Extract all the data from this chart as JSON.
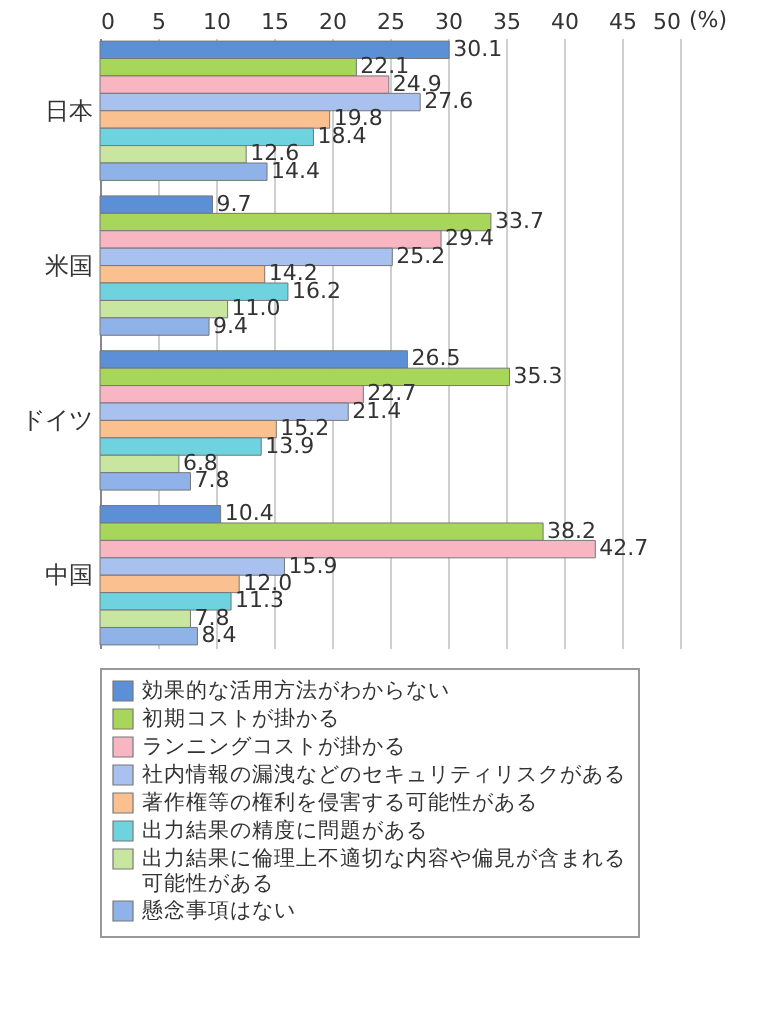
{
  "chart_data": {
    "type": "bar",
    "orientation": "horizontal",
    "xlabel": "(%)",
    "categories": [
      "日本",
      "米国",
      "ドイツ",
      "中国"
    ],
    "series": [
      {
        "name": "効果的な活用方法がわからない",
        "color": "#5b8fd6",
        "values": [
          30.1,
          9.7,
          26.5,
          10.4
        ],
        "value_labels": [
          "30.1",
          "9.7",
          "26.5",
          "10.4"
        ]
      },
      {
        "name": "初期コストが掛かる",
        "color": "#a8d65a",
        "values": [
          22.1,
          33.7,
          35.3,
          38.2
        ],
        "value_labels": [
          "22.1",
          "33.7",
          "35.3",
          "38.2"
        ]
      },
      {
        "name": "ランニングコストが掛かる",
        "color": "#f7b6c2",
        "values": [
          24.9,
          29.4,
          22.7,
          42.7
        ],
        "value_labels": [
          "24.9",
          "29.4",
          "22.7",
          "42.7"
        ]
      },
      {
        "name": "社内情報の漏洩などのセキュリティリスクがある",
        "color": "#a9c1ee",
        "values": [
          27.6,
          25.2,
          21.4,
          15.9
        ],
        "value_labels": [
          "27.6",
          "25.2",
          "21.4",
          "15.9"
        ]
      },
      {
        "name": "著作権等の権利を侵害する可能性がある",
        "color": "#fbc08f",
        "values": [
          19.8,
          14.2,
          15.2,
          12.0
        ],
        "value_labels": [
          "19.8",
          "14.2",
          "15.2",
          "12.0"
        ]
      },
      {
        "name": "出力結果の精度に問題がある",
        "color": "#6fd3df",
        "values": [
          18.4,
          16.2,
          13.9,
          11.3
        ],
        "value_labels": [
          "18.4",
          "16.2",
          "13.9",
          "11.3"
        ]
      },
      {
        "name": "出力結果に倫理上不適切な内容や偏見が含まれる可能性がある",
        "color": "#c9e6a0",
        "values": [
          12.6,
          11.0,
          6.8,
          7.8
        ],
        "value_labels": [
          "12.6",
          "11.0",
          "6.8",
          "7.8"
        ]
      },
      {
        "name": "懸念事項はない",
        "color": "#8fb3e8",
        "values": [
          14.4,
          9.4,
          7.8,
          8.4
        ],
        "value_labels": [
          "14.4",
          "9.4",
          "7.8",
          "8.4"
        ]
      }
    ],
    "xlim": [
      0,
      50
    ],
    "xticks": [
      0,
      5,
      10,
      15,
      20,
      25,
      30,
      35,
      40,
      45,
      50
    ],
    "grid": "x",
    "legend": "bottom"
  }
}
